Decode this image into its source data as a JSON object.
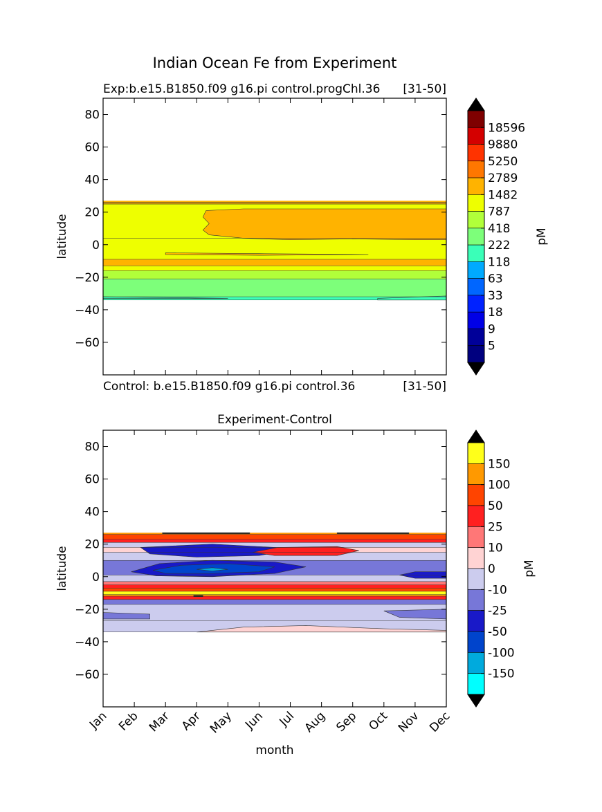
{
  "figure": {
    "title": "Indian Ocean Fe from Experiment"
  },
  "chart_data": [
    {
      "type": "heatmap",
      "subtitle_left": "Exp:b.e15.B1850.f09 g16.pi control.progChl.36",
      "subtitle_right": "[31-50]",
      "footer_left": "Control: b.e15.B1850.f09 g16.pi control.36",
      "footer_right": "[31-50]",
      "xlabel": "",
      "ylabel": "latitude",
      "x_range": [
        0,
        11
      ],
      "ylim": [
        -80,
        90
      ],
      "yticks": [
        80,
        60,
        40,
        20,
        0,
        -20,
        -40,
        -60
      ],
      "x_ticks_positions": [
        1,
        2,
        3,
        4,
        5,
        6,
        7,
        8,
        9,
        10
      ],
      "data_lat_range": [
        -34,
        27
      ],
      "colorbar": {
        "label": "pM",
        "tick_labels": [
          "18596",
          "9880",
          "5250",
          "2789",
          "1482",
          "787",
          "418",
          "222",
          "118",
          "63",
          "33",
          "18",
          "9",
          "5"
        ],
        "colors": [
          "#7f0000",
          "#d40000",
          "#ff3300",
          "#ff7700",
          "#ffb300",
          "#eeff00",
          "#b1ff3a",
          "#7dff7a",
          "#3affb8",
          "#00aaff",
          "#0066ff",
          "#0022ff",
          "#0000e6",
          "#000099",
          "#00007f"
        ],
        "extend_top_color": "#000000",
        "extend_bottom_color": "#000000"
      },
      "bands": [
        {
          "lat": [
            25,
            27
          ],
          "color": "#ffb300"
        },
        {
          "lat": [
            4,
            25
          ],
          "color": "#eeff00"
        },
        {
          "lat": [
            -9,
            4
          ],
          "color": "#eeff00"
        },
        {
          "lat": [
            -13,
            -9
          ],
          "color": "#ffb300"
        },
        {
          "lat": [
            -16,
            -13
          ],
          "color": "#eeff00"
        },
        {
          "lat": [
            -21,
            -16
          ],
          "color": "#b1ff3a"
        },
        {
          "lat": [
            -32,
            -21
          ],
          "color": "#7dff7a"
        },
        {
          "lat": [
            -34,
            -32
          ],
          "color": "#3affb8"
        }
      ],
      "regions": [
        {
          "color": "#ffb300",
          "points": [
            [
              3.3,
              21
            ],
            [
              4.5,
              22
            ],
            [
              11,
              22
            ],
            [
              11,
              3
            ],
            [
              10,
              3
            ],
            [
              8,
              3.5
            ],
            [
              6,
              3
            ],
            [
              4.5,
              4
            ],
            [
              3.4,
              6
            ],
            [
              3.2,
              9
            ],
            [
              3.4,
              13
            ],
            [
              3.2,
              17
            ]
          ]
        },
        {
          "color": "#ffb300",
          "points": [
            [
              0,
              26
            ],
            [
              11,
              26
            ],
            [
              11,
              25
            ],
            [
              0,
              25
            ]
          ]
        },
        {
          "color": "#ffb300",
          "points": [
            [
              2,
              -5
            ],
            [
              5,
              -5.5
            ],
            [
              8.5,
              -6
            ],
            [
              5,
              -6.5
            ],
            [
              2,
              -6
            ]
          ]
        },
        {
          "color": "#3affb8",
          "points": [
            [
              0,
              -32
            ],
            [
              4,
              -33
            ],
            [
              0,
              -33
            ]
          ]
        },
        {
          "color": "#3affb8",
          "points": [
            [
              8.8,
              -33
            ],
            [
              11,
              -31.5
            ],
            [
              11,
              -34
            ],
            [
              8.8,
              -34
            ]
          ]
        }
      ]
    },
    {
      "type": "heatmap",
      "title": "Experiment-Control",
      "xlabel": "month",
      "ylabel": "latitude",
      "categories": [
        "Jan",
        "Feb",
        "Mar",
        "Apr",
        "May",
        "Jun",
        "Jul",
        "Aug",
        "Sep",
        "Oct",
        "Nov",
        "Dec"
      ],
      "x_range": [
        0,
        11
      ],
      "ylim": [
        -80,
        90
      ],
      "yticks": [
        80,
        60,
        40,
        20,
        0,
        -20,
        -40,
        -60
      ],
      "data_lat_range": [
        -34,
        27
      ],
      "colorbar": {
        "label": "pM",
        "tick_labels": [
          "150",
          "100",
          "50",
          "25",
          "10",
          "0",
          "-10",
          "-25",
          "-50",
          "-100",
          "-150"
        ],
        "colors": [
          "#ffff1a",
          "#ff9900",
          "#ff4400",
          "#ff2020",
          "#ff7777",
          "#ffd3d3",
          "#ccccee",
          "#7777d8",
          "#1919c8",
          "#0044cc",
          "#00aadd",
          "#00ffff"
        ],
        "extend_top_color": "#000000",
        "extend_bottom_color": "#000000"
      },
      "bands": [
        {
          "lat": [
            26,
            27
          ],
          "color": "#ff9900"
        },
        {
          "lat": [
            23,
            26
          ],
          "color": "#ff4400"
        },
        {
          "lat": [
            21,
            23
          ],
          "color": "#ff2020"
        },
        {
          "lat": [
            18,
            21
          ],
          "color": "#ccccee"
        },
        {
          "lat": [
            15,
            18
          ],
          "color": "#ffd3d3"
        },
        {
          "lat": [
            10,
            15
          ],
          "color": "#ccccee"
        },
        {
          "lat": [
            1,
            10
          ],
          "color": "#7777d8"
        },
        {
          "lat": [
            -3,
            1
          ],
          "color": "#ccccee"
        },
        {
          "lat": [
            -5,
            -3
          ],
          "color": "#ff7777"
        },
        {
          "lat": [
            -7,
            -5
          ],
          "color": "#ff2020"
        },
        {
          "lat": [
            -9,
            -7
          ],
          "color": "#ff4400"
        },
        {
          "lat": [
            -11,
            -9
          ],
          "color": "#ffff1a"
        },
        {
          "lat": [
            -12,
            -11
          ],
          "color": "#ff9900"
        },
        {
          "lat": [
            -14,
            -12
          ],
          "color": "#ff2020"
        },
        {
          "lat": [
            -17,
            -14
          ],
          "color": "#7777d8"
        },
        {
          "lat": [
            -27,
            -17
          ],
          "color": "#ccccee"
        },
        {
          "lat": [
            -34,
            -27
          ],
          "color": "#ccccee"
        }
      ],
      "regions": [
        {
          "color": "#1919c8",
          "points": [
            [
              1.2,
              18
            ],
            [
              3.5,
              20
            ],
            [
              5.5,
              18
            ],
            [
              6.2,
              17
            ],
            [
              5,
              13
            ],
            [
              3,
              12
            ],
            [
              1.5,
              14
            ]
          ]
        },
        {
          "color": "#ff2020",
          "points": [
            [
              4.8,
              15
            ],
            [
              5.6,
              18
            ],
            [
              7.5,
              18.5
            ],
            [
              8.2,
              16
            ],
            [
              7.5,
              13
            ],
            [
              5.5,
              13
            ]
          ]
        },
        {
          "color": "#1919c8",
          "points": [
            [
              0.9,
              3
            ],
            [
              1.8,
              8
            ],
            [
              3.5,
              10
            ],
            [
              5.5,
              9
            ],
            [
              6.5,
              6
            ],
            [
              5.5,
              2
            ],
            [
              3.5,
              0
            ],
            [
              1.7,
              0.5
            ]
          ]
        },
        {
          "color": "#0044cc",
          "points": [
            [
              1.6,
              4
            ],
            [
              2.5,
              7
            ],
            [
              4,
              8
            ],
            [
              5.5,
              6
            ],
            [
              5,
              3
            ],
            [
              3.5,
              2
            ],
            [
              2,
              2
            ]
          ]
        },
        {
          "color": "#00aadd",
          "points": [
            [
              3,
              4.5
            ],
            [
              3.5,
              5.5
            ],
            [
              4,
              4.5
            ],
            [
              3.5,
              3.5
            ]
          ]
        },
        {
          "color": "#1919c8",
          "points": [
            [
              9.5,
              1
            ],
            [
              10,
              3
            ],
            [
              11,
              3
            ],
            [
              11,
              -1
            ],
            [
              10,
              -1
            ]
          ]
        },
        {
          "color": "#7777d8",
          "points": [
            [
              0,
              -22
            ],
            [
              1.5,
              -23
            ],
            [
              1.5,
              -26
            ],
            [
              0,
              -26
            ]
          ]
        },
        {
          "color": "#7777d8",
          "points": [
            [
              9,
              -21
            ],
            [
              11,
              -20
            ],
            [
              11,
              -26
            ],
            [
              9.5,
              -25
            ]
          ]
        },
        {
          "color": "#ffd3d3",
          "points": [
            [
              3,
              -34
            ],
            [
              4.5,
              -31
            ],
            [
              6.5,
              -30
            ],
            [
              9,
              -32
            ],
            [
              11,
              -33
            ],
            [
              11,
              -34
            ]
          ]
        },
        {
          "color": "#000000",
          "points": [
            [
              1.9,
              26.4
            ],
            [
              4.7,
              26.4
            ],
            [
              4.7,
              27
            ],
            [
              1.9,
              27
            ]
          ]
        },
        {
          "color": "#000000",
          "points": [
            [
              7.5,
              26.4
            ],
            [
              9.8,
              26.4
            ],
            [
              9.8,
              27
            ],
            [
              7.5,
              27
            ]
          ]
        },
        {
          "color": "#000000",
          "points": [
            [
              2.9,
              -11.5
            ],
            [
              3.2,
              -11.5
            ],
            [
              3.2,
              -12.3
            ],
            [
              2.9,
              -12.3
            ]
          ]
        }
      ]
    }
  ]
}
